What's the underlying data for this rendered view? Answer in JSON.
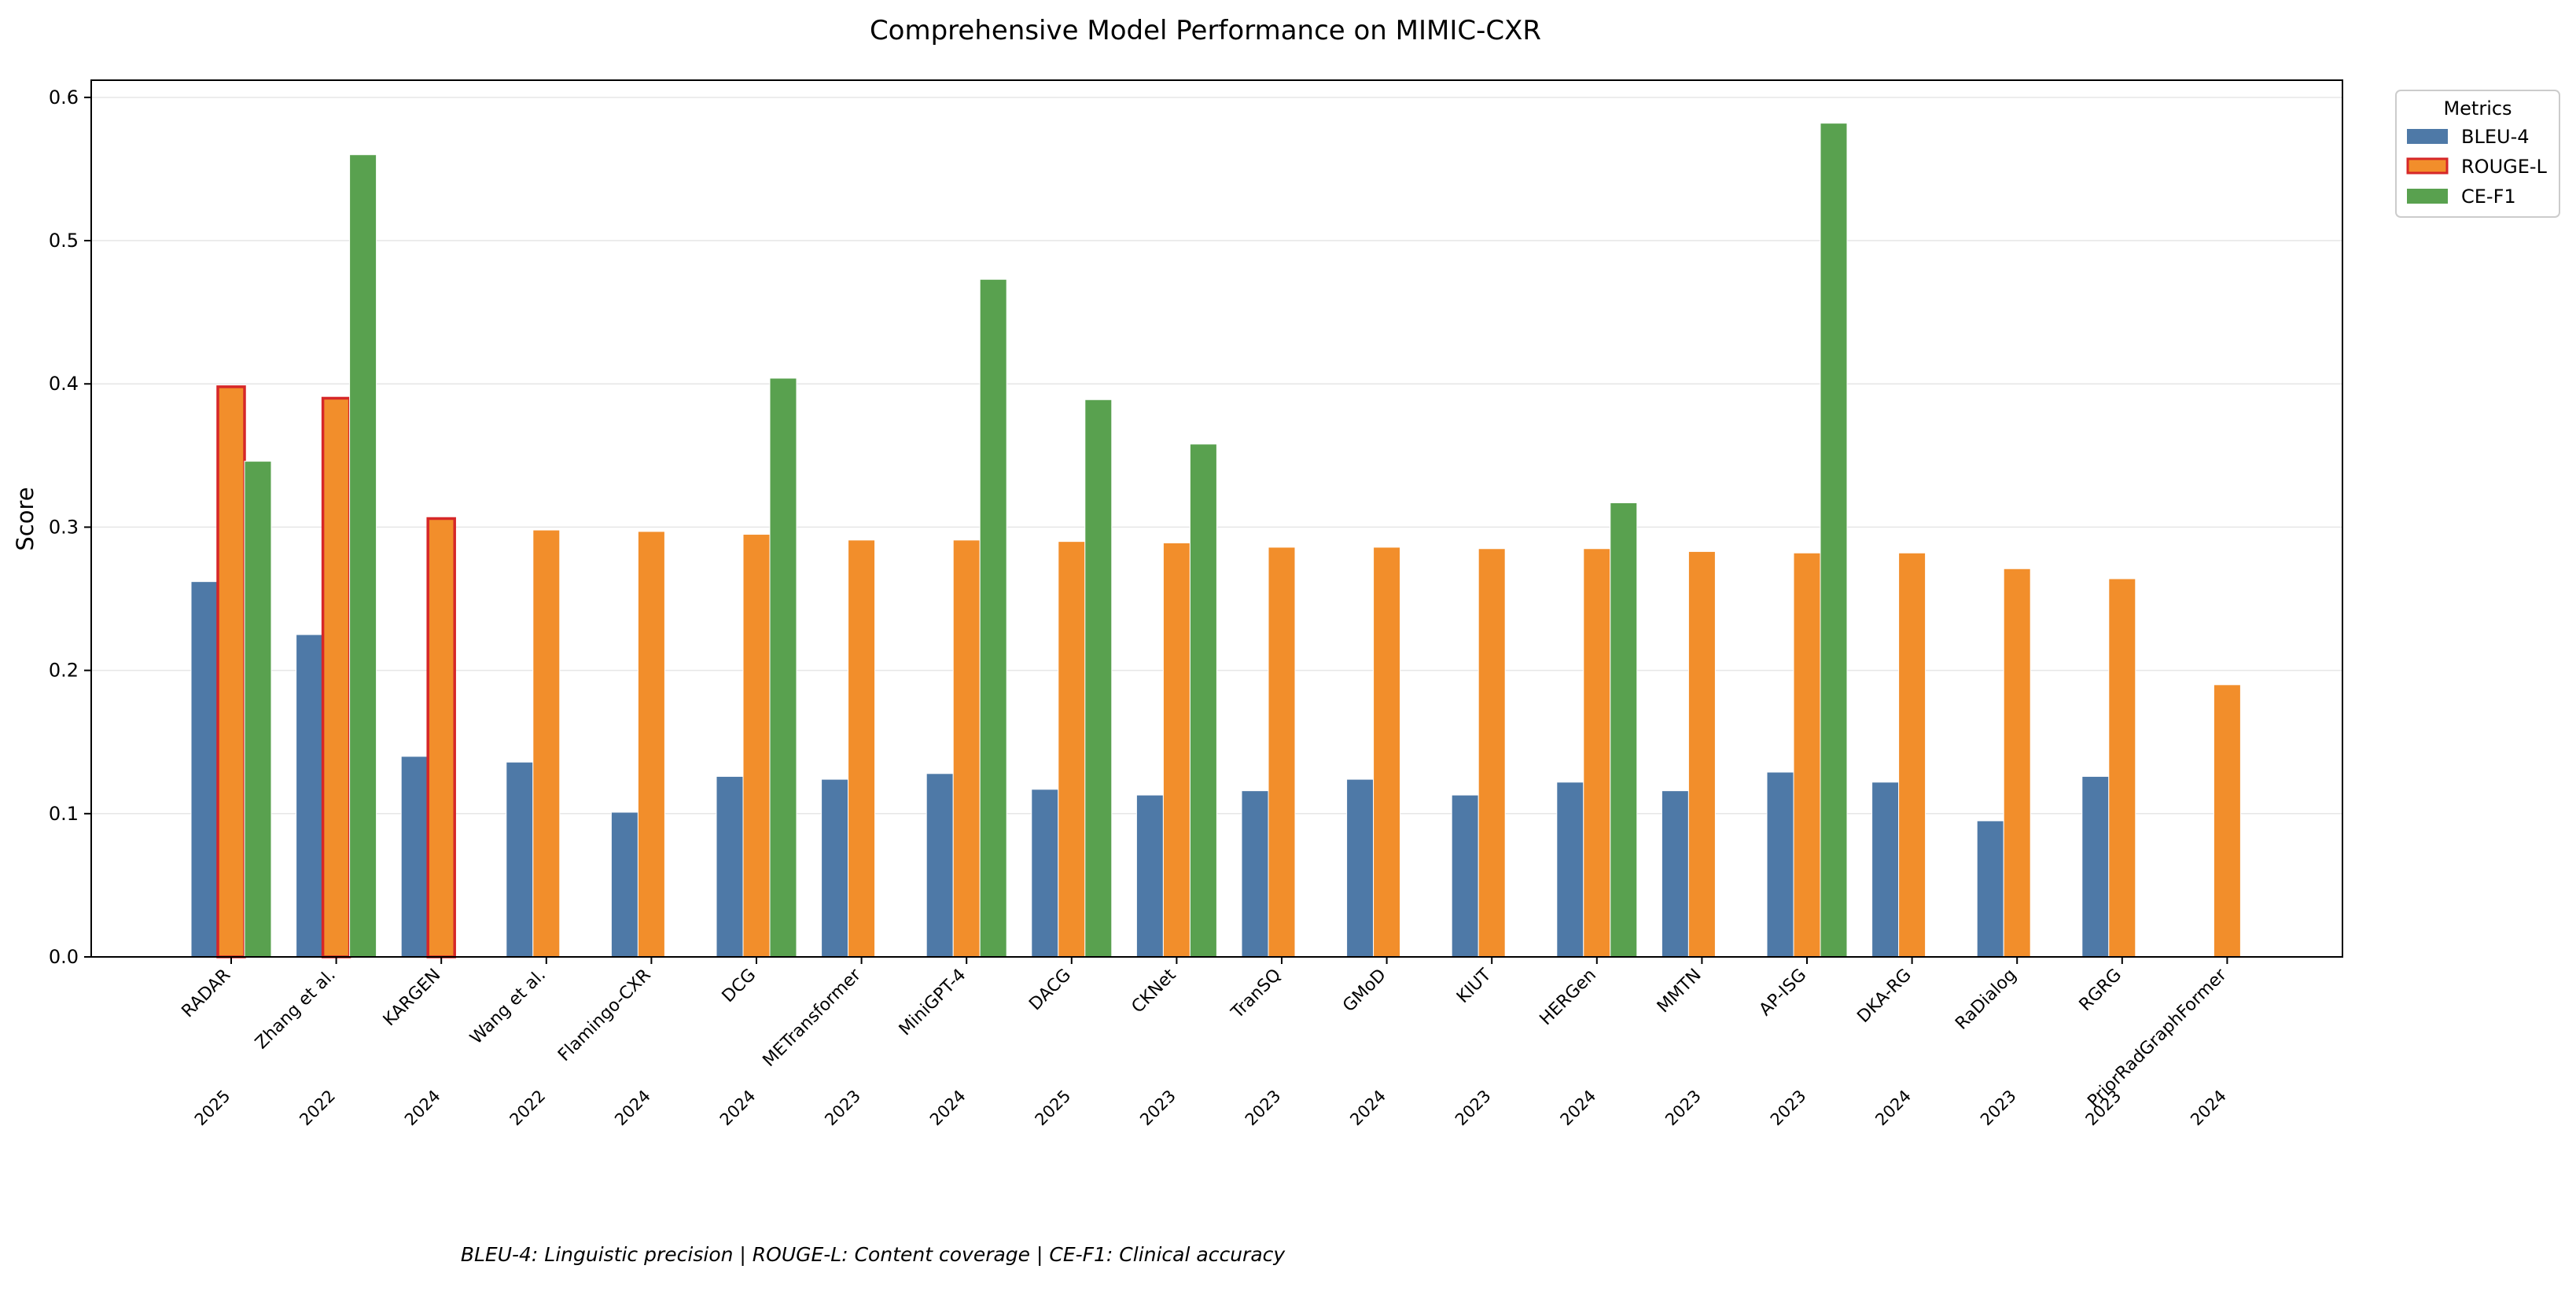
{
  "chart_data": {
    "type": "bar",
    "title": "Comprehensive Model Performance on MIMIC-CXR",
    "xlabel": "",
    "ylabel": "Score",
    "ylim": [
      0,
      0.612
    ],
    "yticks": [
      "0.0",
      "0.1",
      "0.2",
      "0.3",
      "0.4",
      "0.5",
      "0.6"
    ],
    "grid": true,
    "legend": {
      "title": "Metrics",
      "placement": "top-right-outside"
    },
    "categories": [
      "RADAR",
      "Zhang et al.",
      "KARGEN",
      "Wang et al.",
      "Flamingo-CXR",
      "DCG",
      "METransformer",
      "MiniGPT-4",
      "DACG",
      "CKNet",
      "TranSQ",
      "GMoD",
      "KIUT",
      "HERGen",
      "MMTN",
      "AP-ISG",
      "DKA-RG",
      "RaDialog",
      "RGRG",
      "PriorRadGraphFormer"
    ],
    "years": [
      "2025",
      "2022",
      "2024",
      "2022",
      "2024",
      "2024",
      "2023",
      "2024",
      "2025",
      "2023",
      "2023",
      "2024",
      "2023",
      "2024",
      "2023",
      "2023",
      "2024",
      "2023",
      "2023",
      "2024"
    ],
    "highlighted_rouge": [
      "RADAR",
      "Zhang et al.",
      "KARGEN"
    ],
    "series": [
      {
        "name": "BLEU-4",
        "color": "#4e79a7",
        "values": [
          0.262,
          0.225,
          0.14,
          0.136,
          0.101,
          0.126,
          0.124,
          0.128,
          0.117,
          0.113,
          0.116,
          0.124,
          0.113,
          0.122,
          0.116,
          0.129,
          0.122,
          0.095,
          0.126,
          null
        ]
      },
      {
        "name": "ROUGE-L",
        "color": "#f28e2b",
        "highlight_edge": "#d62728",
        "values": [
          0.398,
          0.39,
          0.306,
          0.298,
          0.297,
          0.295,
          0.291,
          0.291,
          0.29,
          0.289,
          0.286,
          0.286,
          0.285,
          0.285,
          0.283,
          0.282,
          0.282,
          0.271,
          0.264,
          0.19
        ]
      },
      {
        "name": "CE-F1",
        "color": "#59a14f",
        "values": [
          0.346,
          0.56,
          null,
          null,
          null,
          0.404,
          null,
          0.473,
          0.389,
          0.358,
          null,
          null,
          null,
          0.317,
          null,
          0.582,
          null,
          null,
          null,
          null
        ]
      }
    ],
    "footnote": "BLEU-4: Linguistic precision | ROUGE-L: Content coverage | CE-F1: Clinical accuracy"
  }
}
